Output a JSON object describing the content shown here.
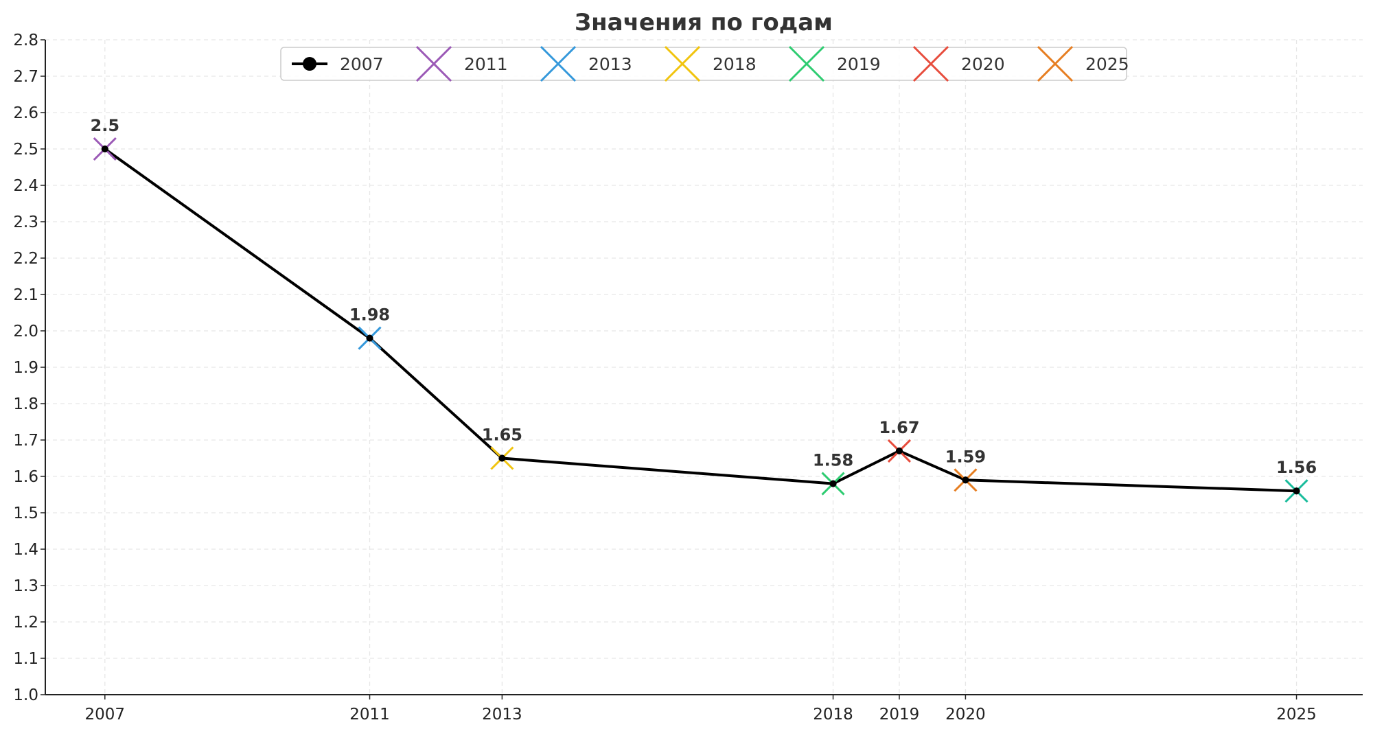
{
  "chart_data": {
    "type": "line",
    "title": "Значения по годам",
    "xlabel": "",
    "ylabel": "",
    "x": [
      2007,
      2011,
      2013,
      2018,
      2019,
      2020,
      2025
    ],
    "x_tick_labels": [
      "2007",
      "2011",
      "2013",
      "2018",
      "2019",
      "2020",
      "2025"
    ],
    "y_tick_labels": [
      "1.0",
      "1.1",
      "1.2",
      "1.3",
      "1.4",
      "1.5",
      "1.6",
      "1.7",
      "1.8",
      "1.9",
      "2.0",
      "2.1",
      "2.2",
      "2.3",
      "2.4",
      "2.5",
      "2.6",
      "2.7",
      "2.8"
    ],
    "ylim": [
      1.0,
      2.8
    ],
    "xlim": [
      2006.1,
      2026
    ],
    "grid": true,
    "legend_position": "top-center",
    "series": [
      {
        "name": "2007",
        "color": "#000000",
        "values": [
          2.5,
          1.98,
          1.65,
          1.58,
          1.67,
          1.59,
          1.56
        ],
        "data_labels": [
          "2.5",
          "1.98",
          "1.65",
          "1.58",
          "1.67",
          "1.59",
          "1.56"
        ]
      }
    ],
    "point_markers": [
      {
        "x": 2007,
        "y": 2.5,
        "color": "#9b59b6"
      },
      {
        "x": 2011,
        "y": 1.98,
        "color": "#3498db"
      },
      {
        "x": 2013,
        "y": 1.65,
        "color": "#f1c40f"
      },
      {
        "x": 2018,
        "y": 1.58,
        "color": "#2ecc71"
      },
      {
        "x": 2019,
        "y": 1.67,
        "color": "#e74c3c"
      },
      {
        "x": 2020,
        "y": 1.59,
        "color": "#e67e22"
      },
      {
        "x": 2025,
        "y": 1.56,
        "color": "#1abc9c"
      }
    ],
    "legend": [
      {
        "label": "2007",
        "color": "#000000",
        "marker": "line-dot"
      },
      {
        "label": "2011",
        "color": "#9b59b6",
        "marker": "x"
      },
      {
        "label": "2013",
        "color": "#3498db",
        "marker": "x"
      },
      {
        "label": "2018",
        "color": "#f1c40f",
        "marker": "x"
      },
      {
        "label": "2019",
        "color": "#2ecc71",
        "marker": "x"
      },
      {
        "label": "2020",
        "color": "#e74c3c",
        "marker": "x"
      },
      {
        "label": "2025",
        "color": "#e67e22",
        "marker": "x"
      }
    ]
  }
}
